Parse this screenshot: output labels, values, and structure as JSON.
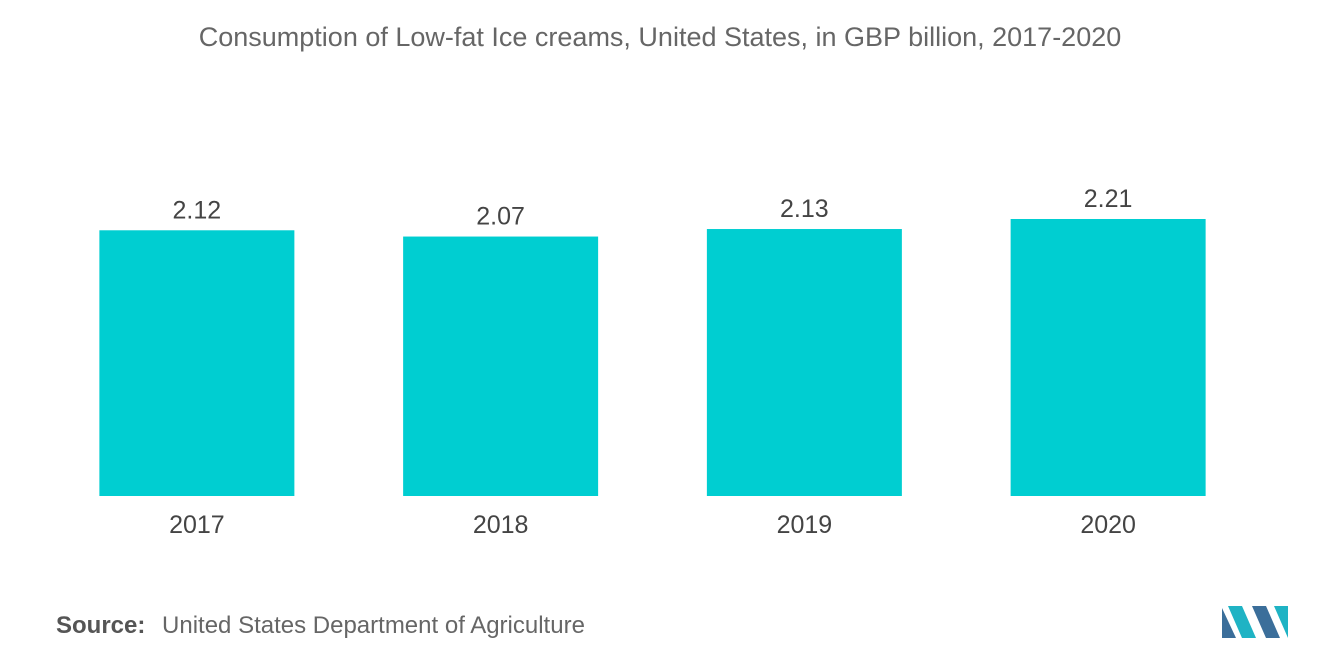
{
  "chart_data": {
    "type": "bar",
    "title": "Consumption of Low-fat Ice creams, United States, in GBP billion, 2017-2020",
    "categories": [
      "2017",
      "2018",
      "2019",
      "2020"
    ],
    "values": [
      2.12,
      2.07,
      2.13,
      2.21
    ],
    "data_labels": [
      "2.12",
      "2.07",
      "2.13",
      "2.21"
    ],
    "ylim": [
      0,
      2.21
    ],
    "grid": false,
    "bar_color": "#00CED1"
  },
  "source": {
    "label": "Source:",
    "text": "United States Department of Agriculture"
  },
  "logo": {
    "colors": [
      "#3b6e9a",
      "#1fb3c4"
    ]
  }
}
